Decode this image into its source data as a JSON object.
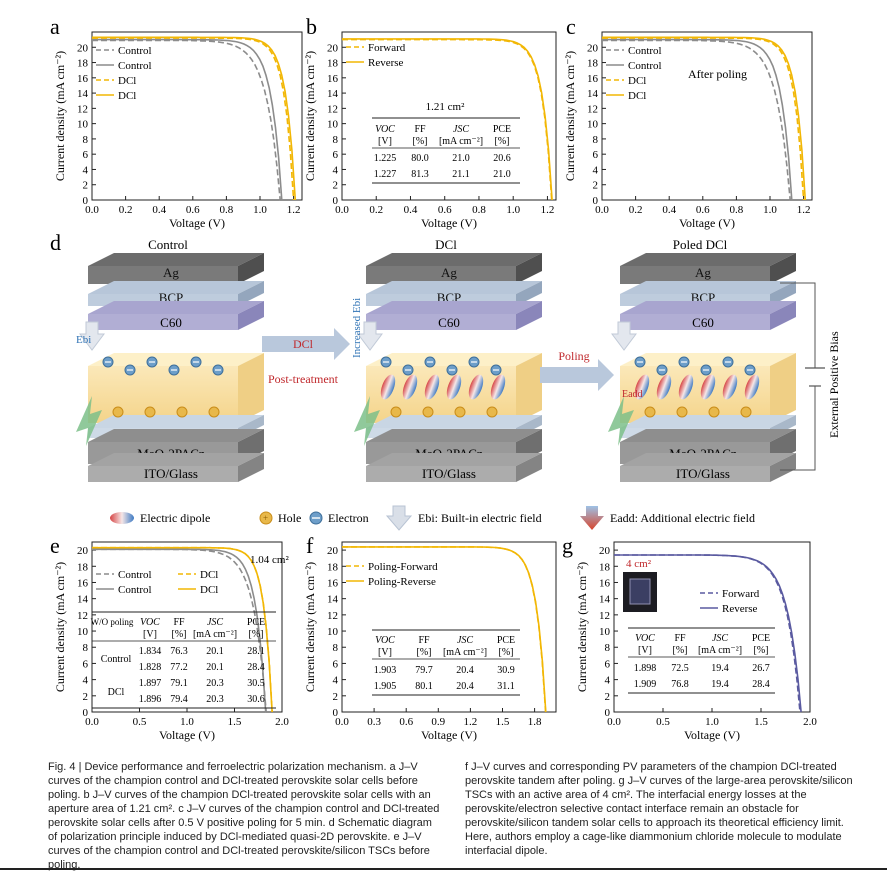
{
  "labels": {
    "a": "a",
    "b": "b",
    "c": "c",
    "d": "d",
    "e": "e",
    "f": "f",
    "g": "g"
  },
  "axes": {
    "ylabel": "Current density (mA cm⁻²)",
    "xlabel": "Voltage (V)"
  },
  "panel_a": {
    "legend": [
      "Control",
      "Control",
      "DCl",
      "DCl"
    ],
    "xticks": [
      "0.0",
      "0.2",
      "0.4",
      "0.6",
      "0.8",
      "1.0",
      "1.2"
    ],
    "yticks": [
      "0",
      "2",
      "4",
      "6",
      "8",
      "10",
      "12",
      "14",
      "16",
      "18",
      "20"
    ]
  },
  "panel_b": {
    "legend": [
      "Forward",
      "Reverse"
    ],
    "table_title": "1.21 cm²",
    "table_head1": [
      "VOC",
      "FF",
      "JSC",
      "PCE"
    ],
    "table_head2": [
      "[V]",
      "[%]",
      "[mA cm⁻²]",
      "[%]"
    ],
    "rows": [
      [
        "1.225",
        "80.0",
        "21.0",
        "20.6"
      ],
      [
        "1.227",
        "81.3",
        "21.1",
        "21.0"
      ]
    ],
    "xticks": [
      "0.0",
      "0.2",
      "0.4",
      "0.6",
      "0.8",
      "1.0",
      "1.2"
    ],
    "yticks": [
      "0",
      "2",
      "4",
      "6",
      "8",
      "10",
      "12",
      "14",
      "16",
      "18",
      "20"
    ]
  },
  "panel_c": {
    "legend": [
      "Control",
      "Control",
      "DCl",
      "DCl"
    ],
    "annotation": "After poling",
    "xticks": [
      "0.0",
      "0.2",
      "0.4",
      "0.6",
      "0.8",
      "1.0",
      "1.2"
    ],
    "yticks": [
      "0",
      "2",
      "4",
      "6",
      "8",
      "10",
      "12",
      "14",
      "16",
      "18",
      "20"
    ]
  },
  "panel_d": {
    "titles": [
      "Control",
      "DCl",
      "Poled DCl"
    ],
    "layers": [
      "Ag",
      "BCP",
      "C60",
      "MeO-2PACz",
      "ITO/Glass"
    ],
    "arrow1": [
      "DCl",
      "Post-treatment"
    ],
    "arrow2": "Poling",
    "increased": "Increased Ebi",
    "ebi": "Ebi",
    "eadd": "Eadd",
    "bias": "External Positive Bias",
    "legend": [
      "Electric dipole",
      "Hole",
      "Electron",
      "Ebi: Built-in electric field",
      "Eadd: Additional electric field"
    ]
  },
  "panel_e": {
    "area": "1.04 cm²",
    "legend": [
      "Control",
      "Control",
      "DCl",
      "DCl"
    ],
    "table_head1": [
      "W/O poling",
      "VOC",
      "FF",
      "JSC",
      "PCE"
    ],
    "table_head2": [
      "[V]",
      "[%]",
      "[mA cm⁻²]",
      "[%]"
    ],
    "groups": [
      "Control",
      "DCl"
    ],
    "rows": [
      [
        "1.834",
        "76.3",
        "20.1",
        "28.1"
      ],
      [
        "1.828",
        "77.2",
        "20.1",
        "28.4"
      ],
      [
        "1.897",
        "79.1",
        "20.3",
        "30.5"
      ],
      [
        "1.896",
        "79.4",
        "20.3",
        "30.6"
      ]
    ],
    "xticks": [
      "0.0",
      "0.5",
      "1.0",
      "1.5",
      "2.0"
    ],
    "yticks": [
      "0",
      "2",
      "4",
      "6",
      "8",
      "10",
      "12",
      "14",
      "16",
      "18",
      "20"
    ]
  },
  "panel_f": {
    "legend": [
      "Poling-Forward",
      "Poling-Reverse"
    ],
    "table_head1": [
      "VOC",
      "FF",
      "JSC",
      "PCE"
    ],
    "table_head2": [
      "[V]",
      "[%]",
      "[mA cm⁻²]",
      "[%]"
    ],
    "rows": [
      [
        "1.903",
        "79.7",
        "20.4",
        "30.9"
      ],
      [
        "1.905",
        "80.1",
        "20.4",
        "31.1"
      ]
    ],
    "xticks": [
      "0.0",
      "0.3",
      "0.6",
      "0.9",
      "1.2",
      "1.5",
      "1.8"
    ],
    "yticks": [
      "0",
      "2",
      "4",
      "6",
      "8",
      "10",
      "12",
      "14",
      "16",
      "18",
      "20"
    ]
  },
  "panel_g": {
    "area": "4 cm²",
    "legend": [
      "Forward",
      "Reverse"
    ],
    "table_head1": [
      "VOC",
      "FF",
      "JSC",
      "PCE"
    ],
    "table_head2": [
      "[V]",
      "[%]",
      "[mA cm⁻²]",
      "[%]"
    ],
    "rows": [
      [
        "1.898",
        "72.5",
        "19.4",
        "26.7"
      ],
      [
        "1.909",
        "76.8",
        "19.4",
        "28.4"
      ]
    ],
    "xticks": [
      "0.0",
      "0.5",
      "1.0",
      "1.5",
      "2.0"
    ],
    "yticks": [
      "0",
      "2",
      "4",
      "6",
      "8",
      "10",
      "12",
      "14",
      "16",
      "18",
      "20"
    ]
  },
  "caption_left": "Fig. 4 | Device performance and ferroelectric polarization mechanism. a J–V curves of the champion control and DCl-treated perovskite solar cells before poling. b J–V curves of the champion DCl-treated perovskite solar cells with an aperture area of 1.21 cm². c J–V curves of the champion control and DCl-treated perovskite solar cells after 0.5 V positive poling for 5 min. d Schematic diagram of polarization principle induced by DCl-mediated quasi-2D perovskite. e J–V curves of the champion control and DCl-treated perovskite/silicon TSCs before poling.",
  "caption_right": "f J–V curves and corresponding PV parameters of the champion DCl-treated perovskite tandem after poling. g J–V curves of the large-area perovskite/silicon TSCs with an active area of 4 cm². The interfacial energy losses at the perovskite/electron selective contact interface remain an obstacle for perovskite/silicon tandem solar cells to approach its theoretical efficiency limit. Here, authors employ a cage-like diammonium chloride molecule to modulate interfacial dipole.",
  "colors": {
    "control": "#8c8c8c",
    "dcl": "#f2b705",
    "tandem": "#5a5aa0"
  }
}
